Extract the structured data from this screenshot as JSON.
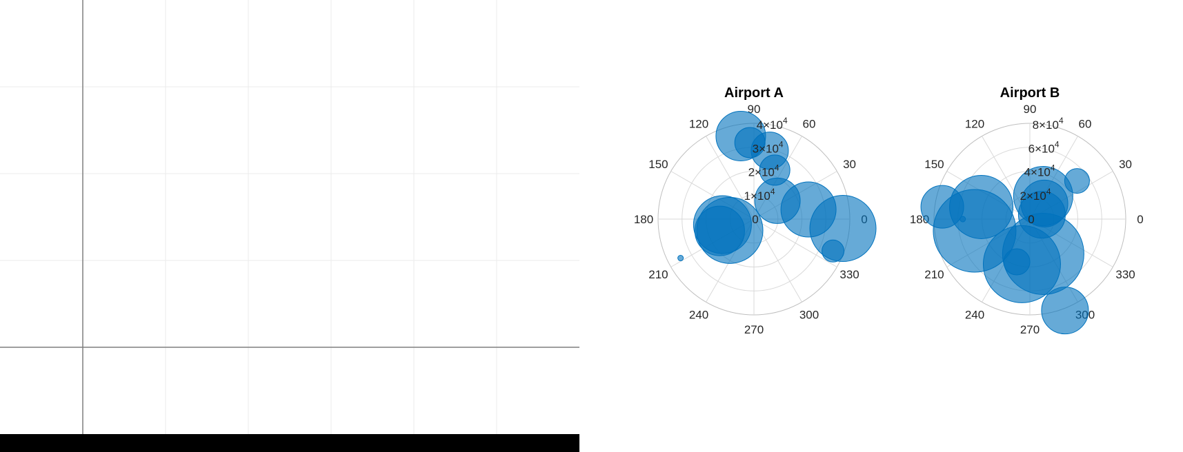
{
  "colors": {
    "bubble_fill": "#0072BD",
    "bubble_edge": "#0072BD",
    "grid": "#d9d9d9",
    "axis_outline": "#bfbfbf",
    "left_axis_line": "#7f7f7f",
    "left_grid": "#ebebeb",
    "bottom_bar": "#000000"
  },
  "chart_data": [
    {
      "type": "scatter",
      "subtype": "polar-bubble",
      "title": "Airport A",
      "theta_ticks": [
        "0",
        "30",
        "60",
        "90",
        "120",
        "150",
        "180",
        "210",
        "240",
        "270",
        "300",
        "330"
      ],
      "r_ticks": [
        "0",
        "1×10",
        "2×10",
        "3×10",
        "4×10"
      ],
      "r_tick_exponent": "4",
      "rlim": [
        0,
        45000
      ],
      "points": [
        {
          "theta": 99,
          "r": 39500,
          "size": 36
        },
        {
          "theta": 93,
          "r": 36000,
          "size": 22
        },
        {
          "theta": 77,
          "r": 33000,
          "size": 27
        },
        {
          "theta": 67,
          "r": 25000,
          "size": 22
        },
        {
          "theta": 38,
          "r": 14000,
          "size": 33
        },
        {
          "theta": 10,
          "r": 26000,
          "size": 40
        },
        {
          "theta": 354,
          "r": 42000,
          "size": 48
        },
        {
          "theta": 338,
          "r": 40000,
          "size": 16
        },
        {
          "theta": 190,
          "r": 15000,
          "size": 42
        },
        {
          "theta": 205,
          "r": 12500,
          "size": 48
        },
        {
          "theta": 199,
          "r": 17000,
          "size": 36
        },
        {
          "theta": 208,
          "r": 39000,
          "size": 4
        }
      ]
    },
    {
      "type": "scatter",
      "subtype": "polar-bubble",
      "title": "Airport B",
      "theta_ticks": [
        "0",
        "30",
        "60",
        "90",
        "120",
        "150",
        "180",
        "210",
        "240",
        "270",
        "300",
        "330"
      ],
      "r_ticks": [
        "0",
        "2×10",
        "4×10",
        "6×10",
        "8×10"
      ],
      "r_tick_exponent": "4",
      "rlim": [
        0,
        90000
      ],
      "points": [
        {
          "theta": 60,
          "r": 25000,
          "size": 43
        },
        {
          "theta": 47,
          "r": 20000,
          "size": 34
        },
        {
          "theta": 39,
          "r": 57000,
          "size": 18
        },
        {
          "theta": 20,
          "r": 12000,
          "size": 34
        },
        {
          "theta": 172,
          "r": 83000,
          "size": 31
        },
        {
          "theta": 166,
          "r": 47000,
          "size": 46
        },
        {
          "theta": 192,
          "r": 53000,
          "size": 60
        },
        {
          "theta": 180,
          "r": 63000,
          "size": 4
        },
        {
          "theta": 291,
          "r": 35000,
          "size": 59
        },
        {
          "theta": 260,
          "r": 43000,
          "size": 56
        },
        {
          "theta": 253,
          "r": 42000,
          "size": 19
        },
        {
          "theta": 291,
          "r": 92000,
          "size": 34
        }
      ]
    }
  ]
}
